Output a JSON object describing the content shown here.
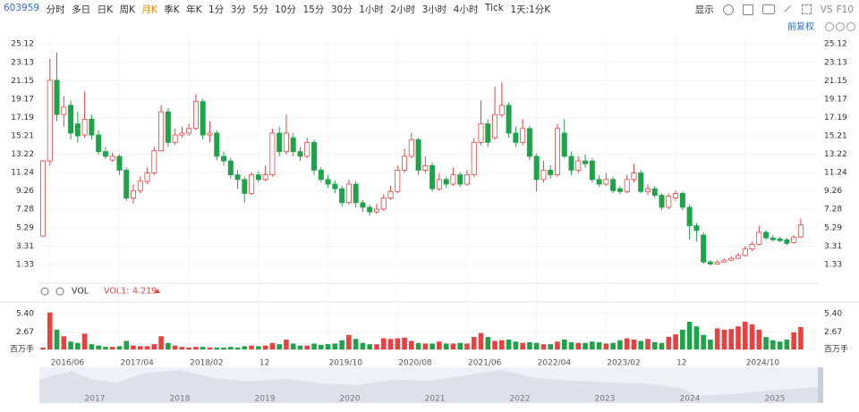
{
  "toolbar": {
    "code": "603959",
    "tabs": [
      "分时",
      "多日",
      "日K",
      "周K",
      "月K",
      "季K",
      "年K",
      "1分",
      "3分",
      "5分",
      "10分",
      "15分",
      "30分",
      "1小时",
      "2小时",
      "3小时",
      "4小时",
      "Tick",
      "1天:1分K"
    ],
    "active": 4,
    "display": "显示",
    "vs": "VS",
    "f10": "F10",
    "adjust": "前复权"
  },
  "indicator": {
    "name": "VOL",
    "line": "VOL1:",
    "value": "4.219"
  },
  "navigator": {
    "labels": [
      "2017",
      "2018",
      "2019",
      "2020",
      "2021",
      "2022",
      "2023",
      "2024",
      "2025"
    ]
  },
  "chart_data": {
    "type": "candlestick",
    "up_color": "#e8413f",
    "down_color": "#1fa34a",
    "categories": [
      null,
      "2016/06",
      null,
      null,
      null,
      null,
      null,
      null,
      null,
      null,
      null,
      "2017/04",
      null,
      null,
      null,
      null,
      null,
      null,
      null,
      null,
      null,
      "2018/02",
      null,
      null,
      null,
      null,
      null,
      null,
      null,
      null,
      null,
      "12",
      null,
      null,
      null,
      null,
      null,
      null,
      null,
      null,
      null,
      "2019/10",
      null,
      null,
      null,
      null,
      null,
      null,
      null,
      null,
      null,
      "2020/08",
      null,
      null,
      null,
      null,
      null,
      null,
      null,
      null,
      null,
      "2021/06",
      null,
      null,
      null,
      null,
      null,
      null,
      null,
      null,
      null,
      "2022/04",
      null,
      null,
      null,
      null,
      null,
      null,
      null,
      null,
      null,
      "2023/02",
      null,
      null,
      null,
      null,
      null,
      null,
      null,
      null,
      null,
      "12",
      null,
      null,
      null,
      null,
      null,
      null,
      null,
      null,
      null,
      "2024/10",
      null,
      null,
      null,
      null,
      null,
      null,
      null,
      null
    ],
    "open": [
      4.4,
      12.5,
      21.2,
      17.5,
      18.5,
      16.5,
      15.3,
      17.0,
      15.3,
      13.5,
      12.6,
      13.0,
      11.5,
      8.5,
      9.3,
      10.3,
      11.2,
      13.6,
      17.8,
      14.5,
      15.3,
      15.5,
      16.0,
      18.9,
      15.3,
      15.5,
      13.0,
      12.5,
      11.0,
      10.5,
      9.0,
      11.0,
      10.5,
      11.0,
      15.5,
      13.5,
      15.0,
      13.5,
      13.0,
      14.5,
      11.5,
      10.5,
      10.0,
      9.5,
      8.0,
      10.0,
      8.0,
      7.5,
      7.0,
      7.3,
      8.5,
      9.2,
      11.5,
      13.0,
      14.8,
      11.5,
      12.0,
      9.5,
      10.5,
      10.0,
      11.0,
      10.0,
      11.0,
      14.5,
      16.5,
      15.0,
      17.5,
      18.5,
      15.5,
      14.5,
      16.0,
      13.0,
      10.5,
      11.5,
      11.0,
      15.5,
      13.0,
      11.5,
      12.5,
      12.5,
      10.5,
      10.0,
      10.5,
      9.5,
      9.2,
      10.5,
      11.2,
      9.2,
      9.5,
      8.8,
      7.5,
      8.5,
      9.0,
      7.5,
      5.5,
      4.5,
      1.6,
      1.4,
      1.6,
      1.8,
      2.0,
      2.3,
      3.0,
      3.5,
      4.8,
      4.2,
      4.1,
      4.0,
      3.7,
      4.3
    ],
    "high": [
      12.6,
      23.5,
      24.2,
      19.5,
      19.0,
      17.8,
      20.0,
      17.5,
      15.8,
      14.0,
      13.4,
      13.2,
      11.8,
      10.0,
      10.8,
      11.8,
      14.0,
      18.5,
      18.2,
      16.0,
      16.2,
      16.5,
      19.7,
      19.2,
      16.8,
      15.8,
      13.5,
      12.8,
      11.5,
      10.8,
      11.3,
      11.4,
      12.0,
      16.0,
      16.2,
      17.5,
      15.5,
      14.0,
      15.0,
      14.8,
      11.8,
      11.0,
      10.4,
      9.8,
      10.5,
      10.3,
      8.3,
      7.8,
      7.9,
      8.9,
      9.8,
      12.0,
      13.8,
      15.5,
      15.0,
      13.0,
      12.3,
      11.2,
      10.8,
      11.8,
      11.3,
      11.5,
      15.0,
      19.0,
      17.0,
      20.5,
      21.0,
      18.8,
      16.2,
      17.0,
      16.3,
      13.3,
      12.5,
      12.0,
      16.5,
      17.0,
      13.5,
      13.0,
      13.2,
      12.8,
      11.0,
      11.2,
      10.8,
      9.8,
      11.0,
      12.2,
      11.5,
      10.0,
      9.8,
      9.0,
      9.0,
      9.3,
      9.2,
      7.8,
      5.8,
      4.8,
      1.8,
      1.8,
      2.0,
      2.2,
      2.6,
      3.3,
      3.8,
      5.5,
      5.0,
      4.5,
      4.3,
      4.2,
      4.5,
      6.3
    ],
    "low": [
      4.3,
      12.0,
      16.8,
      16.2,
      14.8,
      14.5,
      15.0,
      14.8,
      13.2,
      12.7,
      12.4,
      11.0,
      8.2,
      7.9,
      9.0,
      10.0,
      11.0,
      13.5,
      14.0,
      14.2,
      15.0,
      15.2,
      15.8,
      14.8,
      14.5,
      12.6,
      12.0,
      10.6,
      9.5,
      8.0,
      8.8,
      10.2,
      10.3,
      10.8,
      13.0,
      13.2,
      13.0,
      12.5,
      12.8,
      11.0,
      10.2,
      9.6,
      9.0,
      7.6,
      7.8,
      7.5,
      7.0,
      6.6,
      6.8,
      7.1,
      8.3,
      9.0,
      11.2,
      12.8,
      11.0,
      11.2,
      9.2,
      9.3,
      9.6,
      9.8,
      9.7,
      9.8,
      10.8,
      14.2,
      14.0,
      14.8,
      17.2,
      15.0,
      14.0,
      14.2,
      12.6,
      9.2,
      10.2,
      10.6,
      10.8,
      12.8,
      11.0,
      11.2,
      11.8,
      10.2,
      9.7,
      9.8,
      9.0,
      8.9,
      9.0,
      10.2,
      9.0,
      8.8,
      8.5,
      7.2,
      7.3,
      8.2,
      7.2,
      4.0,
      3.8,
      1.4,
      1.2,
      1.3,
      1.5,
      1.7,
      1.9,
      2.2,
      2.8,
      3.4,
      4.0,
      3.8,
      3.7,
      3.4,
      3.6,
      4.2
    ],
    "close": [
      12.5,
      21.2,
      17.5,
      18.3,
      15.5,
      15.2,
      17.0,
      15.3,
      13.5,
      13.0,
      13.0,
      11.5,
      8.5,
      9.3,
      10.3,
      11.2,
      13.6,
      17.8,
      14.5,
      15.3,
      15.5,
      16.0,
      18.9,
      15.3,
      15.5,
      13.0,
      12.5,
      11.0,
      10.5,
      9.0,
      11.0,
      10.5,
      11.0,
      15.5,
      13.5,
      15.5,
      13.5,
      13.0,
      14.5,
      11.5,
      10.5,
      10.0,
      9.5,
      8.0,
      10.0,
      8.0,
      7.5,
      7.0,
      7.3,
      8.5,
      9.2,
      11.5,
      13.0,
      14.8,
      11.5,
      12.0,
      9.5,
      10.5,
      10.0,
      11.0,
      10.0,
      11.0,
      14.5,
      16.5,
      14.5,
      17.5,
      18.5,
      15.5,
      14.5,
      16.0,
      13.0,
      10.5,
      11.5,
      11.0,
      16.0,
      13.0,
      11.5,
      12.5,
      12.2,
      10.5,
      10.0,
      10.5,
      9.3,
      9.2,
      10.5,
      11.2,
      9.2,
      9.5,
      8.8,
      7.5,
      8.7,
      9.0,
      7.5,
      5.5,
      5.0,
      1.6,
      1.4,
      1.6,
      1.8,
      2.0,
      2.3,
      3.0,
      3.5,
      4.8,
      4.2,
      4.0,
      3.9,
      3.6,
      4.3,
      5.6
    ],
    "ylim": [
      -0.6,
      26.0
    ],
    "yticks": [
      25.12,
      23.13,
      21.15,
      19.17,
      17.19,
      15.21,
      13.22,
      11.24,
      9.26,
      7.28,
      5.29,
      3.31,
      1.33
    ],
    "volume": [
      0.3,
      5.6,
      3.0,
      2.0,
      1.2,
      1.0,
      2.4,
      0.8,
      0.6,
      0.4,
      0.4,
      0.5,
      1.3,
      0.6,
      0.5,
      0.5,
      0.8,
      2.0,
      1.0,
      0.6,
      0.4,
      0.3,
      0.4,
      0.4,
      0.3,
      0.3,
      0.3,
      0.4,
      0.3,
      0.5,
      0.6,
      0.5,
      0.6,
      1.0,
      0.8,
      1.5,
      0.9,
      0.6,
      0.6,
      0.9,
      0.7,
      0.8,
      0.9,
      1.4,
      2.2,
      1.6,
      1.0,
      0.8,
      0.8,
      1.7,
      1.6,
      1.7,
      1.8,
      1.3,
      1.0,
      0.9,
      0.9,
      1.2,
      0.9,
      0.9,
      1.0,
      0.9,
      1.9,
      2.5,
      1.9,
      1.3,
      1.4,
      1.5,
      1.2,
      1.0,
      1.1,
      1.0,
      0.8,
      0.8,
      1.2,
      1.5,
      1.1,
      1.0,
      1.0,
      1.2,
      1.1,
      0.9,
      1.0,
      1.4,
      1.7,
      1.5,
      1.3,
      1.6,
      1.1,
      1.0,
      1.9,
      2.3,
      3.0,
      4.2,
      3.5,
      2.2,
      1.5,
      3.2,
      3.0,
      3.1,
      3.5,
      4.2,
      3.8,
      3.0,
      1.9,
      1.4,
      1.2,
      1.5,
      2.6,
      3.4
    ],
    "vylim": [
      -0.8,
      6.5
    ],
    "vyticks": [
      {
        "value": 5.4,
        "label": "5.40"
      },
      2.67,
      {
        "value": 0,
        "label": "百万手"
      }
    ]
  }
}
